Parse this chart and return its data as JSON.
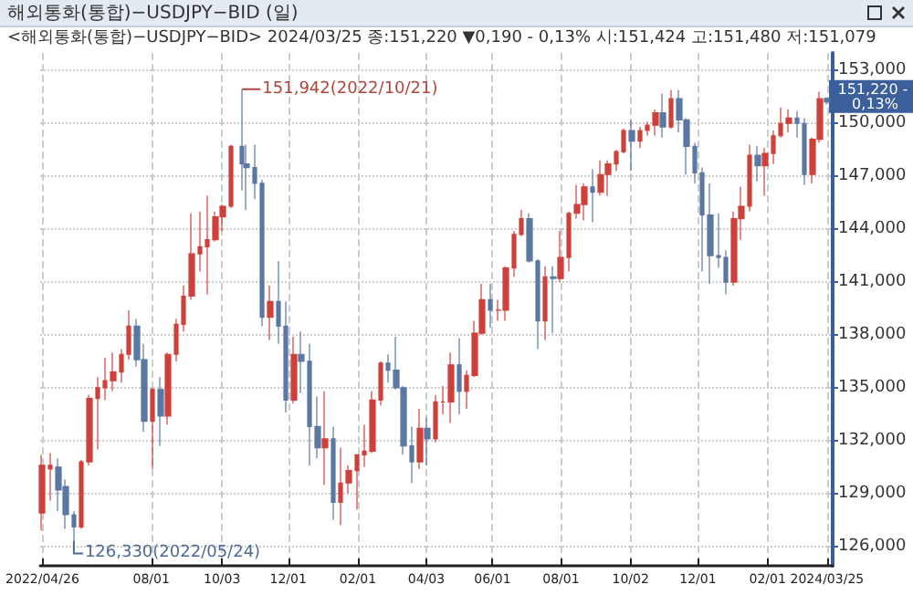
{
  "chart_data": {
    "type": "candlestick",
    "title": "해외통화(통합)−USDJPY−BID (일)",
    "subtitle": "<해외통화(통합)−USDJPY−BID> 2024/03/25 종:151,220 ▼0,190 - 0,13% 시:151,424 고:151,480 저:151,079",
    "x": [
      "2022-04-26",
      "2022-05-03",
      "2022-05-10",
      "2022-05-17",
      "2022-05-24",
      "2022-05-31",
      "2022-06-07",
      "2022-06-14",
      "2022-06-21",
      "2022-06-28",
      "2022-07-05",
      "2022-07-12",
      "2022-07-19",
      "2022-07-26",
      "2022-08-02",
      "2022-08-09",
      "2022-08-16",
      "2022-08-23",
      "2022-08-30",
      "2022-09-06",
      "2022-09-13",
      "2022-09-20",
      "2022-09-27",
      "2022-10-04",
      "2022-10-11",
      "2022-10-21",
      "2022-10-25",
      "2022-11-01",
      "2022-11-08",
      "2022-11-15",
      "2022-11-22",
      "2022-11-29",
      "2022-12-06",
      "2022-12-13",
      "2022-12-20",
      "2022-12-27",
      "2023-01-03",
      "2023-01-10",
      "2023-01-17",
      "2023-01-24",
      "2023-01-31",
      "2023-02-07",
      "2023-02-14",
      "2023-02-21",
      "2023-02-28",
      "2023-03-07",
      "2023-03-14",
      "2023-03-21",
      "2023-03-28",
      "2023-04-04",
      "2023-04-11",
      "2023-04-18",
      "2023-04-25",
      "2023-05-02",
      "2023-05-09",
      "2023-05-16",
      "2023-05-23",
      "2023-05-30",
      "2023-06-06",
      "2023-06-13",
      "2023-06-20",
      "2023-06-27",
      "2023-07-04",
      "2023-07-11",
      "2023-07-18",
      "2023-07-25",
      "2023-08-01",
      "2023-08-08",
      "2023-08-15",
      "2023-08-22",
      "2023-08-29",
      "2023-09-05",
      "2023-09-12",
      "2023-09-19",
      "2023-09-26",
      "2023-10-03",
      "2023-10-10",
      "2023-10-17",
      "2023-10-24",
      "2023-10-31",
      "2023-11-07",
      "2023-11-14",
      "2023-11-21",
      "2023-11-28",
      "2023-12-05",
      "2023-12-12",
      "2023-12-19",
      "2023-12-26",
      "2024-01-02",
      "2024-01-09",
      "2024-01-16",
      "2024-01-23",
      "2024-01-30",
      "2024-02-06",
      "2024-02-13",
      "2024-02-20",
      "2024-02-27",
      "2024-03-05",
      "2024-03-12",
      "2024-03-19",
      "2024-03-25"
    ],
    "ohlc": [
      [
        127900,
        131200,
        126900,
        130600
      ],
      [
        130400,
        131300,
        128600,
        130600
      ],
      [
        130500,
        131000,
        128000,
        129200
      ],
      [
        129400,
        129800,
        127000,
        127800
      ],
      [
        127800,
        128000,
        126330,
        127100
      ],
      [
        127100,
        130900,
        127000,
        130800
      ],
      [
        130800,
        134600,
        130600,
        134400
      ],
      [
        134400,
        135600,
        131500,
        135000
      ],
      [
        135000,
        136700,
        134300,
        135400
      ],
      [
        135400,
        137000,
        134800,
        135900
      ],
      [
        135900,
        137200,
        135300,
        136900
      ],
      [
        136900,
        139400,
        136600,
        138500
      ],
      [
        138500,
        138900,
        136200,
        136600
      ],
      [
        136600,
        137500,
        132500,
        133100
      ],
      [
        133100,
        135000,
        130400,
        134900
      ],
      [
        134900,
        135600,
        131700,
        133400
      ],
      [
        133400,
        137000,
        132900,
        136900
      ],
      [
        136900,
        138900,
        136500,
        138600
      ],
      [
        138600,
        140800,
        138200,
        140200
      ],
      [
        140200,
        144900,
        140000,
        142600
      ],
      [
        142600,
        145000,
        141600,
        143000
      ],
      [
        143000,
        145900,
        140300,
        143400
      ],
      [
        143400,
        145000,
        143300,
        144700
      ],
      [
        144700,
        145400,
        143900,
        145300
      ],
      [
        145300,
        148800,
        145200,
        148700
      ],
      [
        148700,
        151942,
        146200,
        147700
      ],
      [
        147700,
        148800,
        145100,
        147500
      ],
      [
        147500,
        148800,
        145700,
        146600
      ],
      [
        146600,
        146800,
        138500,
        139000
      ],
      [
        139000,
        140800,
        137700,
        139900
      ],
      [
        139900,
        142200,
        137500,
        138500
      ],
      [
        138500,
        139900,
        133600,
        134300
      ],
      [
        134300,
        137900,
        134100,
        136900
      ],
      [
        136900,
        138200,
        134700,
        136500
      ],
      [
        136500,
        137500,
        130600,
        132800
      ],
      [
        132800,
        134500,
        131000,
        131600
      ],
      [
        131600,
        134800,
        129500,
        132100
      ],
      [
        132100,
        132800,
        127500,
        128500
      ],
      [
        128500,
        131600,
        127200,
        129600
      ],
      [
        129600,
        130600,
        129000,
        130300
      ],
      [
        130300,
        131200,
        128100,
        131200
      ],
      [
        131200,
        132900,
        130500,
        131400
      ],
      [
        131400,
        134800,
        131300,
        134300
      ],
      [
        134300,
        136500,
        134000,
        136400
      ],
      [
        136400,
        136900,
        135300,
        136000
      ],
      [
        136000,
        137900,
        134900,
        135000
      ],
      [
        135000,
        135100,
        131200,
        131700
      ],
      [
        131700,
        132800,
        129600,
        130800
      ],
      [
        130800,
        133800,
        130400,
        132700
      ],
      [
        132700,
        133300,
        130600,
        132100
      ],
      [
        132100,
        134600,
        131900,
        134200
      ],
      [
        134200,
        135100,
        133500,
        134200
      ],
      [
        134200,
        137000,
        133000,
        136300
      ],
      [
        136300,
        137800,
        133500,
        134800
      ],
      [
        134800,
        136000,
        133800,
        135700
      ],
      [
        135700,
        138800,
        135600,
        138100
      ],
      [
        138100,
        140900,
        138000,
        140000
      ],
      [
        140000,
        140900,
        138400,
        139400
      ],
      [
        139400,
        140000,
        138800,
        139400
      ],
      [
        139400,
        141900,
        138800,
        141800
      ],
      [
        141800,
        143900,
        141300,
        143700
      ],
      [
        143700,
        145100,
        143600,
        144600
      ],
      [
        144600,
        144900,
        142100,
        142200
      ],
      [
        142200,
        142300,
        137200,
        138800
      ],
      [
        138800,
        141900,
        137700,
        141300
      ],
      [
        141300,
        141900,
        138100,
        141200
      ],
      [
        141200,
        143900,
        141000,
        142400
      ],
      [
        142400,
        145000,
        141600,
        144900
      ],
      [
        144900,
        146500,
        144600,
        145400
      ],
      [
        145400,
        146600,
        144500,
        146400
      ],
      [
        146400,
        147400,
        144400,
        146100
      ],
      [
        146100,
        147900,
        145900,
        147100
      ],
      [
        147100,
        147900,
        145900,
        147700
      ],
      [
        147700,
        148500,
        147300,
        148400
      ],
      [
        148400,
        149700,
        148300,
        149600
      ],
      [
        149600,
        150200,
        147300,
        149000
      ],
      [
        149000,
        149800,
        148600,
        149600
      ],
      [
        149600,
        150100,
        149300,
        149900
      ],
      [
        149900,
        150800,
        149300,
        150600
      ],
      [
        150600,
        151700,
        149200,
        149800
      ],
      [
        149800,
        151900,
        149700,
        151400
      ],
      [
        151400,
        151900,
        149500,
        150200
      ],
      [
        150200,
        150300,
        147100,
        148700
      ],
      [
        148700,
        148900,
        146600,
        147200
      ],
      [
        147200,
        147500,
        141600,
        144800
      ],
      [
        144800,
        146600,
        140900,
        142500
      ],
      [
        142500,
        144900,
        141800,
        142400
      ],
      [
        142400,
        142800,
        140300,
        141000
      ],
      [
        141000,
        145000,
        140800,
        144600
      ],
      [
        144600,
        146400,
        143400,
        145300
      ],
      [
        145300,
        148800,
        145000,
        148200
      ],
      [
        148200,
        148700,
        146700,
        147600
      ],
      [
        147600,
        148600,
        145900,
        148300
      ],
      [
        148300,
        149600,
        147700,
        149300
      ],
      [
        149300,
        150900,
        149200,
        150000
      ],
      [
        150000,
        150800,
        149500,
        150300
      ],
      [
        150300,
        150700,
        149200,
        150000
      ],
      [
        150000,
        150300,
        146500,
        147100
      ],
      [
        147100,
        149200,
        146600,
        149100
      ],
      [
        149100,
        151800,
        148900,
        151400
      ],
      [
        151424,
        151480,
        151079,
        151220
      ]
    ],
    "colors": [
      "#d0403a",
      "#d0403a",
      "#5b77a3",
      "#5b77a3",
      "#5b77a3",
      "#d0403a",
      "#d0403a",
      "#d0403a",
      "#d0403a",
      "#d0403a",
      "#d0403a",
      "#d0403a",
      "#5b77a3",
      "#5b77a3",
      "#d0403a",
      "#5b77a3",
      "#d0403a",
      "#d0403a",
      "#d0403a",
      "#d0403a",
      "#d0403a",
      "#d0403a",
      "#d0403a",
      "#d0403a",
      "#d0403a",
      "#5b77a3",
      "#5b77a3",
      "#5b77a3",
      "#5b77a3",
      "#d0403a",
      "#5b77a3",
      "#5b77a3",
      "#d0403a",
      "#5b77a3",
      "#5b77a3",
      "#5b77a3",
      "#d0403a",
      "#5b77a3",
      "#d0403a",
      "#d0403a",
      "#d0403a",
      "#d0403a",
      "#d0403a",
      "#d0403a",
      "#5b77a3",
      "#5b77a3",
      "#5b77a3",
      "#5b77a3",
      "#d0403a",
      "#5b77a3",
      "#d0403a",
      "#d0403a",
      "#d0403a",
      "#5b77a3",
      "#d0403a",
      "#d0403a",
      "#d0403a",
      "#5b77a3",
      "#d0403a",
      "#d0403a",
      "#d0403a",
      "#d0403a",
      "#5b77a3",
      "#5b77a3",
      "#d0403a",
      "#5b77a3",
      "#d0403a",
      "#d0403a",
      "#d0403a",
      "#d0403a",
      "#5b77a3",
      "#d0403a",
      "#d0403a",
      "#d0403a",
      "#d0403a",
      "#5b77a3",
      "#d0403a",
      "#d0403a",
      "#d0403a",
      "#5b77a3",
      "#d0403a",
      "#5b77a3",
      "#5b77a3",
      "#5b77a3",
      "#5b77a3",
      "#5b77a3",
      "#5b77a3",
      "#5b77a3",
      "#d0403a",
      "#d0403a",
      "#d0403a",
      "#5b77a3",
      "#d0403a",
      "#d0403a",
      "#d0403a",
      "#d0403a",
      "#5b77a3",
      "#5b77a3",
      "#d0403a",
      "#d0403a",
      "#5b77a3"
    ],
    "xlim": [
      "2022-04-24",
      "2024-03-30"
    ],
    "xticks": [
      {
        "value": "2022-04-26",
        "label": "2022/04/26"
      },
      {
        "value": "2022-08-01",
        "label": "08/01"
      },
      {
        "value": "2022-10-03",
        "label": "10/03"
      },
      {
        "value": "2022-12-01",
        "label": "12/01"
      },
      {
        "value": "2023-02-01",
        "label": "02/01"
      },
      {
        "value": "2023-04-03",
        "label": "04/03"
      },
      {
        "value": "2023-06-01",
        "label": "06/01"
      },
      {
        "value": "2023-08-01",
        "label": "08/01"
      },
      {
        "value": "2023-10-02",
        "label": "10/02"
      },
      {
        "value": "2023-12-01",
        "label": "12/01"
      },
      {
        "value": "2024-02-01",
        "label": "02/01"
      },
      {
        "value": "2024-03-25",
        "label": "2024/03/25"
      }
    ],
    "ylim": [
      124900,
      154000
    ],
    "yticks": [
      {
        "value": 126000,
        "label": "126,000"
      },
      {
        "value": 129000,
        "label": "129,000"
      },
      {
        "value": 132000,
        "label": "132,000"
      },
      {
        "value": 135000,
        "label": "135,000"
      },
      {
        "value": 138000,
        "label": "138,000"
      },
      {
        "value": 141000,
        "label": "141,000"
      },
      {
        "value": 144000,
        "label": "144,000"
      },
      {
        "value": 147000,
        "label": "147,000"
      },
      {
        "value": 150000,
        "label": "150,000"
      },
      {
        "value": 153000,
        "label": "153,000"
      }
    ],
    "grid": true,
    "annotations": [
      {
        "text": "151,942(2022/10/21)",
        "x": "2022-10-21",
        "y": 151942
      },
      {
        "text": "126,330(2022/05/24)",
        "x": "2022-05-24",
        "y": 126330
      },
      {
        "text": "151,220 - 0,13%",
        "x": "2024-03-25",
        "y": 151220
      }
    ]
  }
}
